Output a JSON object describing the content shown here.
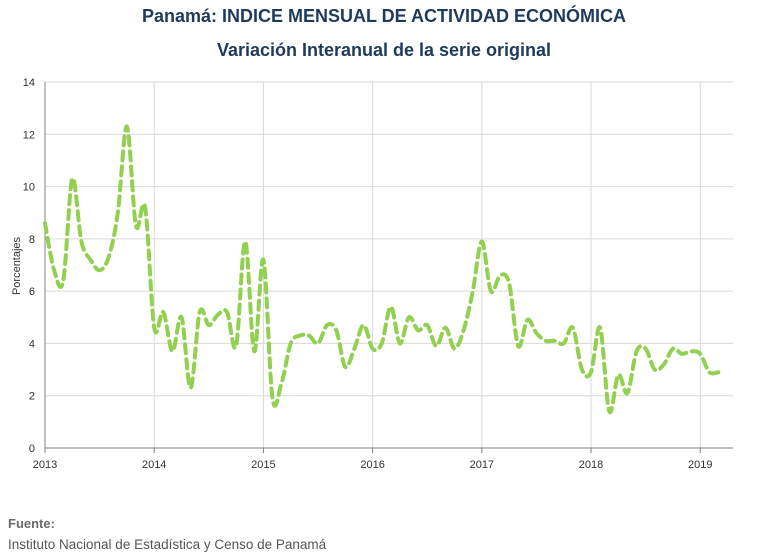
{
  "chart_data": {
    "type": "line",
    "title": "Panamá: INDICE MENSUAL DE ACTIVIDAD ECONÓMICA",
    "subtitle": "Variación Interanual de la serie original",
    "ylabel": "Porcentajes",
    "xlabel": "",
    "ylim": [
      0,
      14
    ],
    "yticks": [
      0,
      2,
      4,
      6,
      8,
      10,
      12,
      14
    ],
    "xlim": [
      2013,
      2019.3
    ],
    "xticks": [
      "2013",
      "2014",
      "2015",
      "2016",
      "2017",
      "2018",
      "2019"
    ],
    "grid": true,
    "legend": "none",
    "line_color": "#92d050",
    "line_style": "dashed",
    "series": [
      {
        "x": [
          2013.0,
          2013.083,
          2013.167,
          2013.25,
          2013.333,
          2013.417,
          2013.5,
          2013.583,
          2013.667,
          2013.75,
          2013.833,
          2013.917,
          2014.0,
          2014.083,
          2014.167,
          2014.25,
          2014.333,
          2014.417,
          2014.5,
          2014.583,
          2014.667,
          2014.75,
          2014.833,
          2014.917,
          2015.0,
          2015.083,
          2015.167,
          2015.25,
          2015.333,
          2015.417,
          2015.5,
          2015.583,
          2015.667,
          2015.75,
          2015.833,
          2015.917,
          2016.0,
          2016.083,
          2016.167,
          2016.25,
          2016.333,
          2016.417,
          2016.5,
          2016.583,
          2016.667,
          2016.75,
          2016.833,
          2016.917,
          2017.0,
          2017.083,
          2017.167,
          2017.25,
          2017.333,
          2017.417,
          2017.5,
          2017.583,
          2017.667,
          2017.75,
          2017.833,
          2017.917,
          2018.0,
          2018.083,
          2018.167,
          2018.25,
          2018.333,
          2018.417,
          2018.5,
          2018.583,
          2018.667,
          2018.75,
          2018.833,
          2018.917,
          2019.0,
          2019.083,
          2019.167
        ],
        "y": [
          8.6,
          6.8,
          6.4,
          10.3,
          7.9,
          7.2,
          6.8,
          7.3,
          9.0,
          12.3,
          8.5,
          9.2,
          4.6,
          5.2,
          3.7,
          5.0,
          2.3,
          5.2,
          4.7,
          5.1,
          5.2,
          3.9,
          7.9,
          3.7,
          7.2,
          1.9,
          2.5,
          4.0,
          4.3,
          4.3,
          4.0,
          4.7,
          4.5,
          3.1,
          3.8,
          4.7,
          3.8,
          4.0,
          5.4,
          4.0,
          5.0,
          4.5,
          4.7,
          3.9,
          4.6,
          3.8,
          4.5,
          6.0,
          7.9,
          6.0,
          6.6,
          6.3,
          3.9,
          4.9,
          4.4,
          4.1,
          4.1,
          4.0,
          4.6,
          3.0,
          2.9,
          4.6,
          1.4,
          2.8,
          2.1,
          3.7,
          3.8,
          3.0,
          3.2,
          3.8,
          3.6,
          3.7,
          3.6,
          2.9,
          2.9
        ]
      }
    ],
    "source_label": "Fuente:",
    "source_text": "Instituto Nacional de Estadística y Censo de Panamá"
  }
}
